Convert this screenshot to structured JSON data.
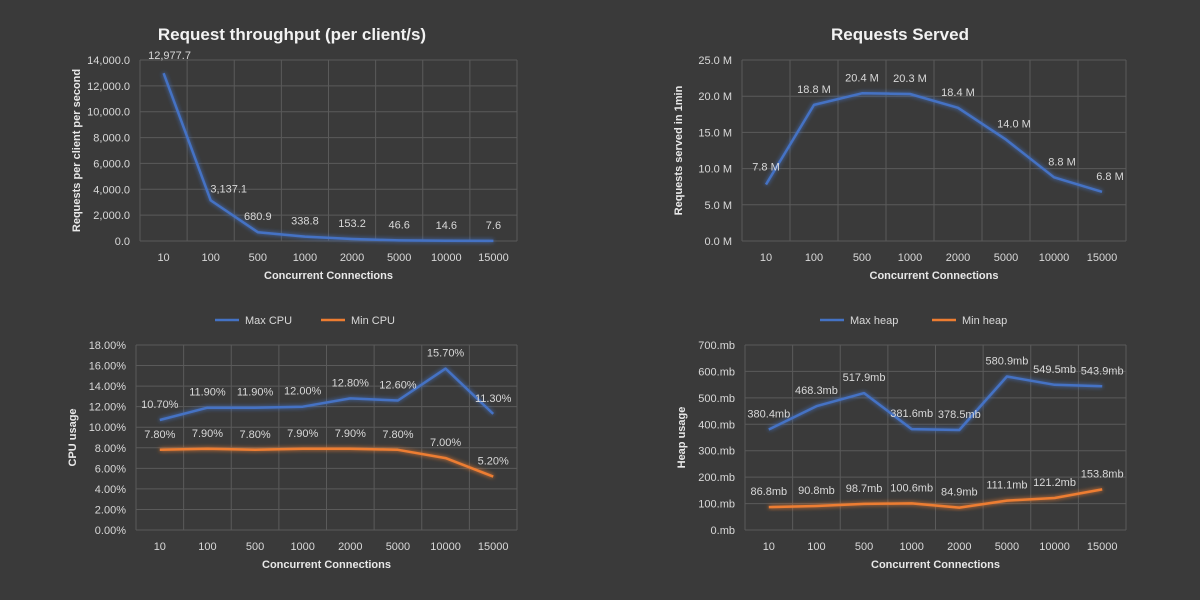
{
  "colors": {
    "background": "#3a3a3a",
    "blue": "#4472c4",
    "orange": "#ed7d31",
    "grid": "#5a5a5a",
    "text": "#d9d9d9"
  },
  "chart_data": [
    {
      "id": "throughput",
      "type": "line",
      "title": "Request throughput (per client/s)",
      "xlabel": "Concurrent  Connections",
      "ylabel": "Requests per client per second",
      "categories": [
        "10",
        "100",
        "500",
        "1000",
        "2000",
        "5000",
        "10000",
        "15000"
      ],
      "ylim": [
        0,
        14000
      ],
      "yticks": [
        0,
        2000,
        4000,
        6000,
        8000,
        10000,
        12000,
        14000
      ],
      "ytick_labels": [
        "0.0",
        "2,000.0",
        "4,000.0",
        "6,000.0",
        "8,000.0",
        "10,000.0",
        "12,000.0",
        "14,000.0"
      ],
      "series": [
        {
          "name": "",
          "color": "#4472c4",
          "values": [
            12977.7,
            3137.1,
            680.9,
            338.8,
            153.2,
            46.6,
            14.6,
            7.6
          ],
          "labels": [
            "12,977.7",
            "3,137.1",
            "680.9",
            "338.8",
            "153.2",
            "46.6",
            "14.6",
            "7.6"
          ]
        }
      ],
      "legend": []
    },
    {
      "id": "served",
      "type": "line",
      "title": "Requests Served",
      "xlabel": "Concurrent  Connections",
      "ylabel": "Requests served in 1min",
      "categories": [
        "10",
        "100",
        "500",
        "1000",
        "2000",
        "5000",
        "10000",
        "15000"
      ],
      "ylim": [
        0,
        25
      ],
      "yticks": [
        0,
        5,
        10,
        15,
        20,
        25
      ],
      "ytick_labels": [
        "0.0 M",
        "5.0 M",
        "10.0 M",
        "15.0 M",
        "20.0 M",
        "25.0 M"
      ],
      "series": [
        {
          "name": "",
          "color": "#4472c4",
          "values": [
            7.8,
            18.8,
            20.4,
            20.3,
            18.4,
            14.0,
            8.8,
            6.8
          ],
          "labels": [
            "7.8 M",
            "18.8 M",
            "20.4 M",
            "20.3 M",
            "18.4 M",
            "14.0 M",
            "8.8 M",
            "6.8 M"
          ]
        }
      ],
      "legend": []
    },
    {
      "id": "cpu",
      "type": "line",
      "title": "",
      "xlabel": "Concurrent  Connections",
      "ylabel": "CPU usage",
      "categories": [
        "10",
        "100",
        "500",
        "1000",
        "2000",
        "5000",
        "10000",
        "15000"
      ],
      "ylim": [
        0,
        18
      ],
      "yticks": [
        0,
        2,
        4,
        6,
        8,
        10,
        12,
        14,
        16,
        18
      ],
      "ytick_labels": [
        "0.00%",
        "2.00%",
        "4.00%",
        "6.00%",
        "8.00%",
        "10.00%",
        "12.00%",
        "14.00%",
        "16.00%",
        "18.00%"
      ],
      "series": [
        {
          "name": "Max CPU",
          "color": "#4472c4",
          "values": [
            10.7,
            11.9,
            11.9,
            12.0,
            12.8,
            12.6,
            15.7,
            11.3
          ],
          "labels": [
            "10.70%",
            "11.90%",
            "11.90%",
            "12.00%",
            "12.80%",
            "12.60%",
            "15.70%",
            "11.30%"
          ]
        },
        {
          "name": "Min CPU",
          "color": "#ed7d31",
          "values": [
            7.8,
            7.9,
            7.8,
            7.9,
            7.9,
            7.8,
            7.0,
            5.2
          ],
          "labels": [
            "7.80%",
            "7.90%",
            "7.80%",
            "7.90%",
            "7.90%",
            "7.80%",
            "7.00%",
            "5.20%"
          ]
        }
      ],
      "legend": [
        "Max CPU",
        "Min CPU"
      ]
    },
    {
      "id": "heap",
      "type": "line",
      "title": "",
      "xlabel": "Concurrent  Connections",
      "ylabel": "Heap usage",
      "categories": [
        "10",
        "100",
        "500",
        "1000",
        "2000",
        "5000",
        "10000",
        "15000"
      ],
      "ylim": [
        0,
        700
      ],
      "yticks": [
        0,
        100,
        200,
        300,
        400,
        500,
        600,
        700
      ],
      "ytick_labels": [
        "0.mb",
        "100.mb",
        "200.mb",
        "300.mb",
        "400.mb",
        "500.mb",
        "600.mb",
        "700.mb"
      ],
      "series": [
        {
          "name": "Max heap",
          "color": "#4472c4",
          "values": [
            380.4,
            468.3,
            517.9,
            381.6,
            378.5,
            580.9,
            549.5,
            543.9
          ],
          "labels": [
            "380.4mb",
            "468.3mb",
            "517.9mb",
            "381.6mb",
            "378.5mb",
            "580.9mb",
            "549.5mb",
            "543.9mb"
          ]
        },
        {
          "name": "Min heap",
          "color": "#ed7d31",
          "values": [
            86.8,
            90.8,
            98.7,
            100.6,
            84.9,
            111.1,
            121.2,
            153.8
          ],
          "labels": [
            "86.8mb",
            "90.8mb",
            "98.7mb",
            "100.6mb",
            "84.9mb",
            "111.1mb",
            "121.2mb",
            "153.8mb"
          ]
        }
      ],
      "legend": [
        "Max heap",
        "Min heap"
      ]
    }
  ]
}
